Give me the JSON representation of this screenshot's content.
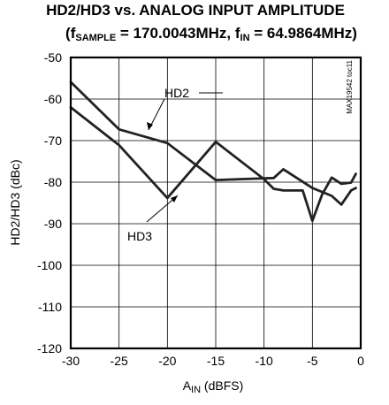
{
  "chart_data": {
    "type": "line",
    "title_line1": "HD2/HD3 vs. ANALOG INPUT AMPLITUDE",
    "title_line2": {
      "open": "(f",
      "sub1": "SAMPLE",
      "mid": " = 170.0043MHz, f",
      "sub2": "IN",
      "close": " = 64.9864MHz)"
    },
    "ylabel": "HD2/HD3 (dBc)",
    "xlabel": {
      "main": "A",
      "sub": "IN",
      "unit": " (dBFS)"
    },
    "watermark": "MAX19542 toc11",
    "xlim": [
      -30,
      0
    ],
    "ylim": [
      -120,
      -50
    ],
    "xticks": [
      -30,
      -25,
      -20,
      -15,
      -10,
      -5,
      0
    ],
    "yticks": [
      -50,
      -60,
      -70,
      -80,
      -90,
      -100,
      -110,
      -120
    ],
    "grid": true,
    "series": [
      {
        "name": "HD2",
        "x": [
          -30,
          -25,
          -20,
          -15,
          -9,
          -8,
          -5,
          -3,
          -2,
          -1,
          -0.5
        ],
        "y": [
          -55.9,
          -67.3,
          -70.6,
          -79.5,
          -79,
          -76.9,
          -81.4,
          -83.3,
          -85.4,
          -82,
          -81.4
        ]
      },
      {
        "name": "HD3",
        "x": [
          -30,
          -25,
          -20,
          -15,
          -10,
          -9,
          -8,
          -6,
          -5,
          -4,
          -3,
          -2,
          -1,
          -0.5
        ],
        "y": [
          -62,
          -71.1,
          -83.8,
          -70.3,
          -79.3,
          -81.6,
          -82,
          -82,
          -89.3,
          -83,
          -78.9,
          -80.4,
          -80.1,
          -78
        ]
      }
    ],
    "annotations": [
      {
        "text": "HD2",
        "series": "HD2"
      },
      {
        "text": "HD3",
        "series": "HD3"
      }
    ],
    "line_color": "#222222"
  }
}
